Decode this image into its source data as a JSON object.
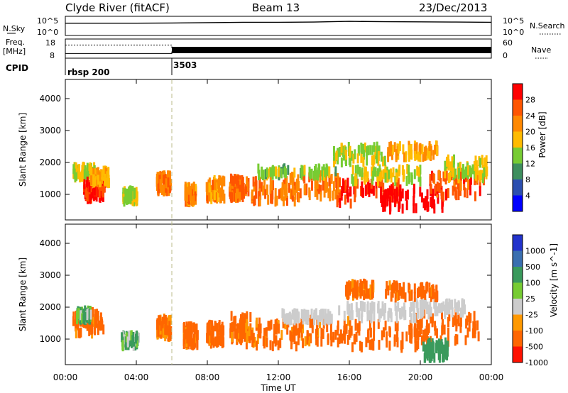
{
  "header": {
    "station": "Clyde River (fitACF)",
    "beam": "Beam 13",
    "date": "23/Dec/2013"
  },
  "strip_labels": {
    "nsky": "N.Sky",
    "freq_line1": "Freq.",
    "freq_line2": "[MHz]",
    "cpid": "CPID",
    "nsearch": "N.Search",
    "nave": "Nave"
  },
  "colors": {
    "power_scale": [
      "#0000ff",
      "#2c4fb0",
      "#3e8f5e",
      "#77cc33",
      "#ffbb00",
      "#ff8800",
      "#ff5500",
      "#ff0000"
    ],
    "velocity_scale": [
      "#2233cc",
      "#3a6fb0",
      "#3a9a5c",
      "#77cc33",
      "#cccccc",
      "#ff9900",
      "#ff6600",
      "#ff1100"
    ]
  },
  "chart_data": [
    {
      "type": "line",
      "title": "N.Sky / N.Search",
      "x": [
        "00:00",
        "02:00",
        "04:00",
        "06:00",
        "08:00",
        "10:00",
        "12:00",
        "14:00",
        "16:00",
        "18:00",
        "20:00",
        "22:00",
        "24:00"
      ],
      "series": [
        {
          "name": "N.Sky",
          "values": [
            3000,
            3000,
            3000,
            3500,
            4500,
            6000,
            6000,
            7000,
            12000,
            9000,
            8000,
            7000,
            6000
          ]
        }
      ],
      "yticks": [
        "10^5",
        "10^0"
      ],
      "ytick_labels_right": [
        "10^5",
        "10^0"
      ]
    },
    {
      "type": "line",
      "x": [
        "00:00",
        "06:00",
        "06:00",
        "24:00"
      ],
      "series": [
        {
          "name": "Freq.",
          "values": [
            10,
            10,
            11,
            11
          ]
        },
        {
          "name": "Nave",
          "values": [
            43,
            43,
            30,
            30
          ]
        }
      ],
      "ytick_labels_left": [
        "18",
        "8"
      ],
      "ytick_labels_right": [
        "60",
        "0"
      ]
    },
    {
      "type": "table",
      "segments": [
        {
          "start": "00:00",
          "label": "rbsp 200"
        },
        {
          "start": "06:00",
          "label": "3503"
        }
      ]
    },
    {
      "type": "heatmap",
      "ylabel": "Slant Range [km]",
      "yticks": [
        1000,
        2000,
        3000,
        4000
      ],
      "ylim": [
        200,
        4600
      ],
      "colorbar_label": "Power [dB]",
      "colorbar_ticks": [
        4,
        8,
        12,
        16,
        20,
        24,
        28
      ],
      "blobs": [
        {
          "t": 1.0,
          "r": 1700,
          "dt": 0.6,
          "dr": 180,
          "v": 14
        },
        {
          "t": 1.6,
          "r": 1150,
          "dt": 0.6,
          "dr": 300,
          "v": 27
        },
        {
          "t": 1.9,
          "r": 1550,
          "dt": 0.5,
          "dr": 200,
          "v": 17
        },
        {
          "t": 3.6,
          "r": 950,
          "dt": 0.4,
          "dr": 180,
          "v": 13
        },
        {
          "t": 5.5,
          "r": 1350,
          "dt": 0.4,
          "dr": 260,
          "v": 21
        },
        {
          "t": 7.0,
          "r": 1000,
          "dt": 0.3,
          "dr": 250,
          "v": 20
        },
        {
          "t": 8.4,
          "r": 1150,
          "dt": 0.5,
          "dr": 300,
          "v": 20
        },
        {
          "t": 9.6,
          "r": 1200,
          "dt": 0.4,
          "dr": 320,
          "v": 23
        },
        {
          "t": 11.5,
          "r": 1100,
          "dt": 1.4,
          "dr": 330,
          "v": 22
        },
        {
          "t": 14.0,
          "r": 1250,
          "dt": 1.4,
          "dr": 350,
          "v": 21
        },
        {
          "t": 17.0,
          "r": 1050,
          "dt": 1.8,
          "dr": 350,
          "v": 26
        },
        {
          "t": 19.5,
          "r": 850,
          "dt": 1.8,
          "dr": 330,
          "v": 29
        },
        {
          "t": 22.0,
          "r": 1300,
          "dt": 1.6,
          "dr": 400,
          "v": 24
        },
        {
          "t": 18.0,
          "r": 1600,
          "dt": 2.0,
          "dr": 200,
          "v": 15
        },
        {
          "t": 16.5,
          "r": 2250,
          "dt": 1.5,
          "dr": 250,
          "v": 13
        },
        {
          "t": 19.5,
          "r": 2350,
          "dt": 1.4,
          "dr": 200,
          "v": 18
        },
        {
          "t": 22.5,
          "r": 1800,
          "dt": 1.2,
          "dr": 300,
          "v": 14
        },
        {
          "t": 13.0,
          "r": 1700,
          "dt": 2.2,
          "dr": 120,
          "v": 12
        }
      ]
    },
    {
      "type": "heatmap",
      "xlabel": "Time UT",
      "ylabel": "Slant Range [km]",
      "xticks": [
        "00:00",
        "04:00",
        "08:00",
        "12:00",
        "16:00",
        "20:00",
        "00:00"
      ],
      "yticks": [
        1000,
        2000,
        3000,
        4000
      ],
      "ylim": [
        200,
        4600
      ],
      "colorbar_label": "Velocity [m s^-1]",
      "colorbar_ticks": [
        1000,
        500,
        100,
        25,
        -25,
        -100,
        -500,
        -1000
      ],
      "blobs": [
        {
          "t": 1.3,
          "r": 1500,
          "dt": 0.9,
          "dr": 350,
          "v": -150
        },
        {
          "t": 1.0,
          "r": 1750,
          "dt": 0.4,
          "dr": 150,
          "v": 60
        },
        {
          "t": 3.6,
          "r": 950,
          "dt": 0.5,
          "dr": 180,
          "v": 60
        },
        {
          "t": 5.5,
          "r": 1350,
          "dt": 0.4,
          "dr": 300,
          "v": -120
        },
        {
          "t": 7.0,
          "r": 1100,
          "dt": 0.4,
          "dr": 300,
          "v": -150
        },
        {
          "t": 8.4,
          "r": 1150,
          "dt": 0.5,
          "dr": 300,
          "v": -150
        },
        {
          "t": 9.8,
          "r": 1350,
          "dt": 0.6,
          "dr": 400,
          "v": -150
        },
        {
          "t": 11.5,
          "r": 1150,
          "dt": 1.5,
          "dr": 380,
          "v": -140
        },
        {
          "t": 14.5,
          "r": 1250,
          "dt": 1.8,
          "dr": 380,
          "v": -150
        },
        {
          "t": 18.0,
          "r": 1100,
          "dt": 2.0,
          "dr": 380,
          "v": -160
        },
        {
          "t": 21.5,
          "r": 1350,
          "dt": 1.8,
          "dr": 450,
          "v": -180
        },
        {
          "t": 20.8,
          "r": 650,
          "dt": 0.7,
          "dr": 250,
          "v": 150
        },
        {
          "t": 17.5,
          "r": 1850,
          "dt": 2.2,
          "dr": 200,
          "v": 0
        },
        {
          "t": 21.0,
          "r": 1950,
          "dt": 1.5,
          "dr": 180,
          "v": 0
        },
        {
          "t": 13.5,
          "r": 1700,
          "dt": 1.5,
          "dr": 120,
          "v": 0
        },
        {
          "t": 16.5,
          "r": 2550,
          "dt": 0.8,
          "dr": 200,
          "v": -140
        },
        {
          "t": 19.5,
          "r": 2500,
          "dt": 1.5,
          "dr": 200,
          "v": -150
        }
      ]
    }
  ]
}
